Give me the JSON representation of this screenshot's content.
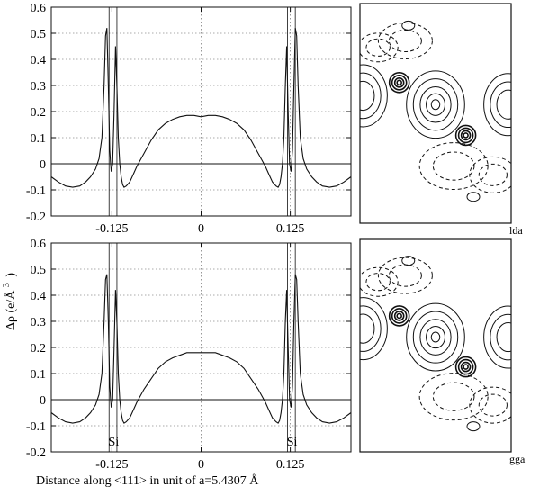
{
  "figure": {
    "ylabel": "Δρ (e/Å",
    "ylabel_sup": "3",
    "ylabel_close": ")",
    "xlabel": "Distance along <111> in unit of a=5.4307 Å",
    "atom_label": "Si",
    "colors": {
      "line": "#111111",
      "grid": "#555555",
      "bg": "#ffffff"
    }
  },
  "chart_data": [
    {
      "type": "line",
      "panel": "top",
      "x_tick_labels": [
        "-0.125",
        "0",
        "0.125"
      ],
      "x_ticks": [
        -0.125,
        0,
        0.125
      ],
      "xlim": [
        -0.21,
        0.21
      ],
      "ylim": [
        -0.2,
        0.6
      ],
      "y_ticks": [
        -0.2,
        -0.1,
        0,
        0.1,
        0.2,
        0.3,
        0.4,
        0.5,
        0.6
      ],
      "y_tick_labels": [
        "-0.2",
        "-0.1",
        "0",
        "0.1",
        "0.2",
        "0.3",
        "0.4",
        "0.5",
        "0.6"
      ],
      "atom_positions": [
        -0.125,
        0.125
      ],
      "grid": true,
      "series": [
        {
          "x": [
            -0.21,
            -0.2,
            -0.19,
            -0.18,
            -0.17,
            -0.162,
            -0.155,
            -0.148,
            -0.143,
            -0.139,
            -0.136,
            -0.134,
            -0.132,
            -0.13,
            -0.128,
            -0.126,
            -0.124,
            -0.122,
            -0.12,
            -0.118,
            -0.116,
            -0.114,
            -0.112,
            -0.11,
            -0.108,
            -0.105,
            -0.1,
            -0.095,
            -0.09,
            -0.08,
            -0.07,
            -0.06,
            -0.05,
            -0.04,
            -0.03,
            -0.02,
            -0.01,
            0,
            0.01,
            0.02,
            0.03,
            0.04,
            0.05,
            0.06,
            0.07,
            0.08,
            0.09,
            0.095,
            0.1,
            0.105,
            0.108,
            0.11,
            0.112,
            0.114,
            0.116,
            0.118,
            0.12,
            0.122,
            0.124,
            0.126,
            0.128,
            0.13,
            0.132,
            0.134,
            0.136,
            0.139,
            0.143,
            0.148,
            0.155,
            0.162,
            0.17,
            0.18,
            0.19,
            0.2,
            0.21
          ],
          "y": [
            -0.05,
            -0.07,
            -0.085,
            -0.09,
            -0.085,
            -0.07,
            -0.05,
            -0.02,
            0.02,
            0.1,
            0.3,
            0.49,
            0.52,
            0.3,
            0.05,
            -0.03,
            0.0,
            0.2,
            0.45,
            0.3,
            0.1,
            0.0,
            -0.05,
            -0.08,
            -0.09,
            -0.085,
            -0.07,
            -0.04,
            -0.01,
            0.04,
            0.09,
            0.13,
            0.155,
            0.17,
            0.18,
            0.185,
            0.185,
            0.18,
            0.185,
            0.185,
            0.18,
            0.17,
            0.155,
            0.13,
            0.09,
            0.04,
            -0.01,
            -0.04,
            -0.07,
            -0.085,
            -0.09,
            -0.08,
            -0.05,
            0.0,
            0.1,
            0.3,
            0.45,
            0.2,
            0.0,
            -0.03,
            0.05,
            0.3,
            0.52,
            0.49,
            0.3,
            0.1,
            0.02,
            -0.02,
            -0.05,
            -0.07,
            -0.085,
            -0.09,
            -0.085,
            -0.07,
            -0.05
          ]
        }
      ]
    },
    {
      "type": "line",
      "panel": "bottom",
      "x_tick_labels": [
        "-0.125",
        "0",
        "0.125"
      ],
      "x_ticks": [
        -0.125,
        0,
        0.125
      ],
      "xlim": [
        -0.21,
        0.21
      ],
      "ylim": [
        -0.2,
        0.6
      ],
      "y_ticks": [
        -0.2,
        -0.1,
        0,
        0.1,
        0.2,
        0.3,
        0.4,
        0.5,
        0.6
      ],
      "y_tick_labels": [
        "-0.2",
        "-0.1",
        "0",
        "0.1",
        "0.2",
        "0.3",
        "0.4",
        "0.5",
        "0.6"
      ],
      "atom_positions": [
        -0.125,
        0.125
      ],
      "grid": true,
      "series": [
        {
          "x": [
            -0.21,
            -0.2,
            -0.19,
            -0.18,
            -0.17,
            -0.162,
            -0.155,
            -0.148,
            -0.143,
            -0.139,
            -0.136,
            -0.134,
            -0.132,
            -0.13,
            -0.128,
            -0.126,
            -0.124,
            -0.122,
            -0.12,
            -0.118,
            -0.116,
            -0.114,
            -0.112,
            -0.11,
            -0.108,
            -0.105,
            -0.1,
            -0.095,
            -0.09,
            -0.08,
            -0.07,
            -0.06,
            -0.05,
            -0.04,
            -0.03,
            -0.02,
            -0.01,
            0,
            0.01,
            0.02,
            0.03,
            0.04,
            0.05,
            0.06,
            0.07,
            0.08,
            0.09,
            0.095,
            0.1,
            0.105,
            0.108,
            0.11,
            0.112,
            0.114,
            0.116,
            0.118,
            0.12,
            0.122,
            0.124,
            0.126,
            0.128,
            0.13,
            0.132,
            0.134,
            0.136,
            0.139,
            0.143,
            0.148,
            0.155,
            0.162,
            0.17,
            0.18,
            0.19,
            0.2,
            0.21
          ],
          "y": [
            -0.05,
            -0.07,
            -0.085,
            -0.09,
            -0.085,
            -0.07,
            -0.05,
            -0.02,
            0.02,
            0.1,
            0.3,
            0.46,
            0.48,
            0.3,
            0.05,
            -0.03,
            0.0,
            0.2,
            0.42,
            0.3,
            0.1,
            0.0,
            -0.05,
            -0.08,
            -0.09,
            -0.085,
            -0.07,
            -0.04,
            -0.01,
            0.04,
            0.08,
            0.12,
            0.145,
            0.16,
            0.17,
            0.18,
            0.18,
            0.18,
            0.18,
            0.18,
            0.17,
            0.16,
            0.145,
            0.12,
            0.08,
            0.04,
            -0.01,
            -0.04,
            -0.07,
            -0.085,
            -0.09,
            -0.08,
            -0.05,
            0.0,
            0.1,
            0.3,
            0.42,
            0.2,
            0.0,
            -0.03,
            0.05,
            0.3,
            0.48,
            0.46,
            0.3,
            0.1,
            0.02,
            -0.02,
            -0.05,
            -0.07,
            -0.085,
            -0.09,
            -0.085,
            -0.07,
            -0.05
          ]
        }
      ]
    }
  ],
  "contours": [
    {
      "panel": "top",
      "label": "lda"
    },
    {
      "panel": "bottom",
      "label": "gga"
    }
  ]
}
